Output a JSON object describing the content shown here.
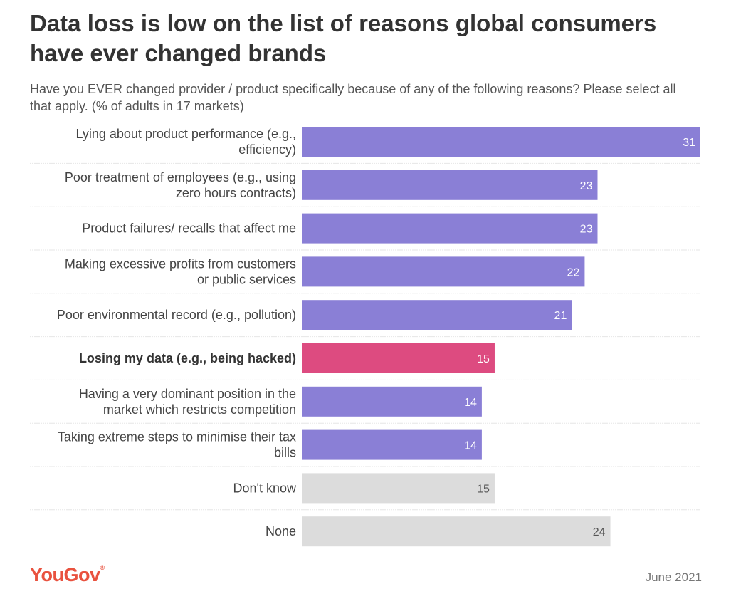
{
  "title": "Data loss is low on the list of reasons global consumers have ever changed brands",
  "subtitle": "Have you EVER changed provider / product specifically because of any of the following reasons? Please select all that apply. (% of adults in 17 markets)",
  "footer": {
    "logo_text": "YouGov",
    "date": "June 2021"
  },
  "colors": {
    "default_bar": "#8a7fd6",
    "highlight_bar": "#dd4b80",
    "neutral_bar": "#dcdcdc",
    "value_on_color": "#ffffff",
    "value_on_neutral": "#555555"
  },
  "chart_data": {
    "type": "bar",
    "orientation": "horizontal",
    "categories": [
      [
        "Lying about product performance (e.g.,",
        "efficiency)"
      ],
      [
        "Poor treatment of employees (e.g., using",
        "zero hours contracts)"
      ],
      [
        "Product failures/ recalls that affect me"
      ],
      [
        "Making excessive profits from customers",
        "or public services"
      ],
      [
        "Poor environmental record (e.g., pollution)"
      ],
      [
        "Losing my data (e.g., being hacked)"
      ],
      [
        "Having a very dominant position in the",
        "market which restricts competition"
      ],
      [
        "Taking extreme steps to minimise their tax",
        "bills"
      ],
      [
        "Don't know"
      ],
      [
        "None"
      ]
    ],
    "values": [
      31,
      23,
      23,
      22,
      21,
      15,
      14,
      14,
      15,
      24
    ],
    "styles": [
      "default",
      "default",
      "default",
      "default",
      "default",
      "highlight",
      "default",
      "default",
      "neutral",
      "neutral"
    ],
    "xlim": [
      0,
      31
    ],
    "grid": false,
    "legend": "none"
  }
}
